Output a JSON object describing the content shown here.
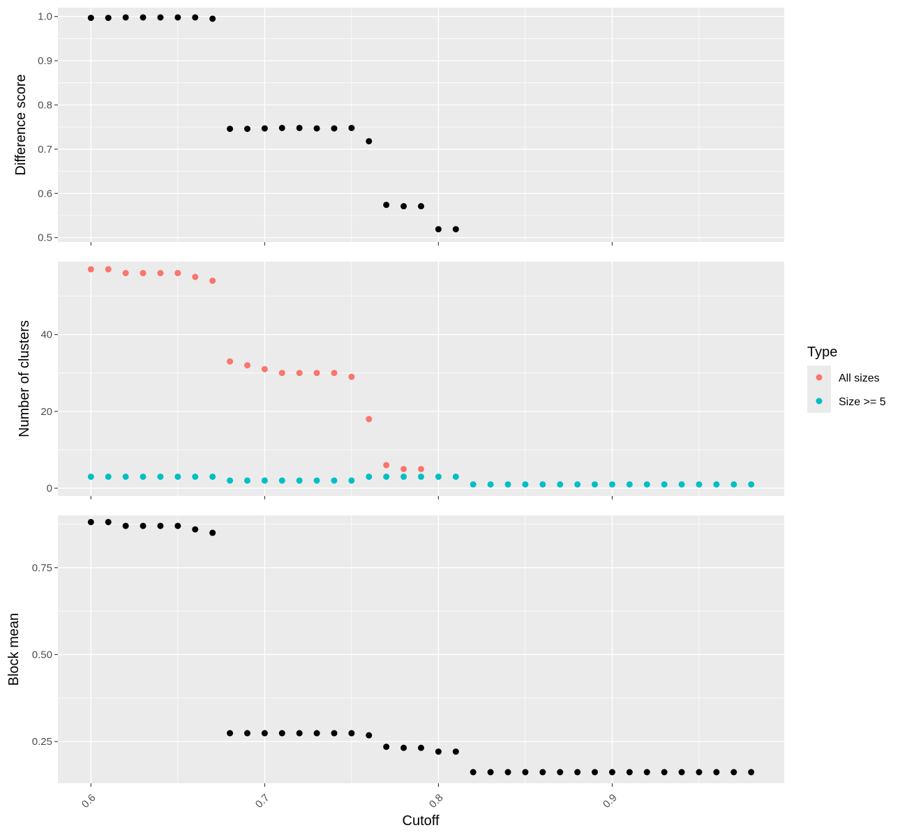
{
  "chart_data": {
    "type": "scatter",
    "xlabel": "Cutoff",
    "x_ticks": [
      0.6,
      0.7,
      0.8,
      0.9
    ],
    "x_tick_labels": [
      "0.6",
      "0.7",
      "0.8",
      "0.9"
    ],
    "xlim": [
      0.581,
      0.999
    ],
    "background": "#EBEBEB",
    "gridlines": true,
    "legend": {
      "title": "Type",
      "position": "right",
      "entries": [
        {
          "label": "All sizes",
          "color": "#F8766D"
        },
        {
          "label": "Size >= 5",
          "color": "#00BFC4"
        }
      ]
    },
    "panels": [
      {
        "ylabel": "Difference score",
        "ylim": [
          0.49,
          1.02
        ],
        "y_ticks": [
          0.5,
          0.6,
          0.7,
          0.8,
          0.9,
          1.0
        ],
        "y_tick_labels": [
          "0.5",
          "0.6",
          "0.7",
          "0.8",
          "0.9",
          "1.0"
        ],
        "show_x_labels": false,
        "series": [
          {
            "color": "#000000",
            "x": [
              0.6,
              0.61,
              0.62,
              0.63,
              0.64,
              0.65,
              0.66,
              0.67,
              0.68,
              0.69,
              0.7,
              0.71,
              0.72,
              0.73,
              0.74,
              0.75,
              0.76,
              0.77,
              0.78,
              0.79,
              0.8,
              0.81
            ],
            "y": [
              0.997,
              0.997,
              0.998,
              0.998,
              0.998,
              0.998,
              0.998,
              0.995,
              0.746,
              0.746,
              0.747,
              0.748,
              0.748,
              0.747,
              0.747,
              0.748,
              0.718,
              0.574,
              0.571,
              0.571,
              0.519,
              0.519
            ]
          }
        ]
      },
      {
        "ylabel": "Number of clusters",
        "ylim": [
          -2,
          59
        ],
        "y_ticks": [
          0,
          20,
          40
        ],
        "y_tick_labels": [
          "0",
          "20",
          "40"
        ],
        "show_x_labels": false,
        "series": [
          {
            "name": "All sizes",
            "color": "#F8766D",
            "x": [
              0.6,
              0.61,
              0.62,
              0.63,
              0.64,
              0.65,
              0.66,
              0.67,
              0.68,
              0.69,
              0.7,
              0.71,
              0.72,
              0.73,
              0.74,
              0.75,
              0.76,
              0.77,
              0.78,
              0.79
            ],
            "y": [
              57,
              57,
              56,
              56,
              56,
              56,
              55,
              54,
              33,
              32,
              31,
              30,
              30,
              30,
              30,
              29,
              18,
              6,
              5,
              5
            ]
          },
          {
            "name": "Size >= 5",
            "color": "#00BFC4",
            "x": [
              0.6,
              0.61,
              0.62,
              0.63,
              0.64,
              0.65,
              0.66,
              0.67,
              0.68,
              0.69,
              0.7,
              0.71,
              0.72,
              0.73,
              0.74,
              0.75,
              0.76,
              0.77,
              0.78,
              0.79,
              0.8,
              0.81,
              0.82,
              0.83,
              0.84,
              0.85,
              0.86,
              0.87,
              0.88,
              0.89,
              0.9,
              0.91,
              0.92,
              0.93,
              0.94,
              0.95,
              0.96,
              0.97,
              0.98
            ],
            "y": [
              3,
              3,
              3,
              3,
              3,
              3,
              3,
              3,
              2,
              2,
              2,
              2,
              2,
              2,
              2,
              2,
              3,
              3,
              3,
              3,
              3,
              3,
              1,
              1,
              1,
              1,
              1,
              1,
              1,
              1,
              1,
              1,
              1,
              1,
              1,
              1,
              1,
              1,
              1
            ]
          }
        ]
      },
      {
        "ylabel": "Block mean",
        "ylim": [
          0.13,
          0.9
        ],
        "y_ticks": [
          0.25,
          0.5,
          0.75
        ],
        "y_tick_labels": [
          "0.25",
          "0.50",
          "0.75"
        ],
        "show_x_labels": true,
        "series": [
          {
            "color": "#000000",
            "x": [
              0.6,
              0.61,
              0.62,
              0.63,
              0.64,
              0.65,
              0.66,
              0.67,
              0.68,
              0.69,
              0.7,
              0.71,
              0.72,
              0.73,
              0.74,
              0.75,
              0.76,
              0.77,
              0.78,
              0.79,
              0.8,
              0.81,
              0.82,
              0.83,
              0.84,
              0.85,
              0.86,
              0.87,
              0.88,
              0.89,
              0.9,
              0.91,
              0.92,
              0.93,
              0.94,
              0.95,
              0.96,
              0.97,
              0.98
            ],
            "y": [
              0.881,
              0.881,
              0.87,
              0.87,
              0.87,
              0.87,
              0.86,
              0.85,
              0.274,
              0.274,
              0.274,
              0.274,
              0.274,
              0.274,
              0.274,
              0.274,
              0.268,
              0.235,
              0.232,
              0.232,
              0.221,
              0.221,
              0.162,
              0.162,
              0.162,
              0.162,
              0.162,
              0.162,
              0.162,
              0.162,
              0.162,
              0.162,
              0.162,
              0.162,
              0.162,
              0.162,
              0.162,
              0.162,
              0.162
            ]
          }
        ]
      }
    ]
  }
}
